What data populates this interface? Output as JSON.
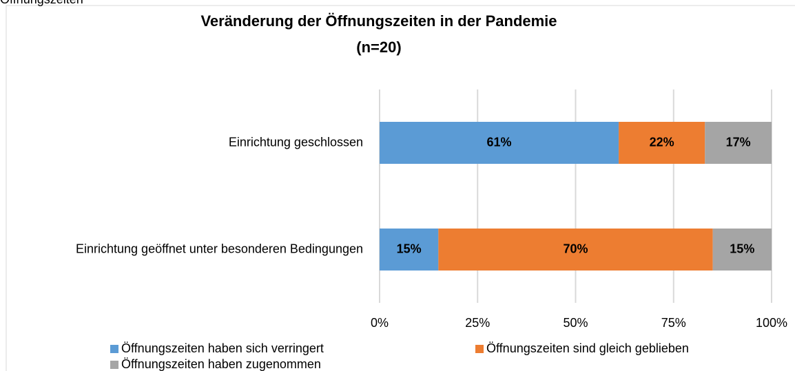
{
  "caption": "Öffnungszeiten",
  "chart_data": {
    "type": "stacked-bar-horizontal",
    "title": "Veränderung der Öffnungszeiten in der Pandemie",
    "subtitle": "(n=20)",
    "categories": [
      "Einrichtung geschlossen",
      "Einrichtung geöffnet unter besonderen Bedingungen"
    ],
    "series": [
      {
        "name": "Öffnungszeiten haben sich verringert",
        "color": "#5b9bd5",
        "values": [
          61,
          15
        ],
        "value_labels": [
          "61%",
          "15%"
        ]
      },
      {
        "name": "Öffnungszeiten sind gleich geblieben",
        "color": "#ed7d31",
        "values": [
          22,
          70
        ],
        "value_labels": [
          "22%",
          "70%"
        ]
      },
      {
        "name": "Öffnungszeiten haben zugenommen",
        "color": "#a5a5a5",
        "values": [
          17,
          15
        ],
        "value_labels": [
          "17%",
          "15%"
        ]
      }
    ],
    "xlim": [
      0,
      100
    ],
    "xticks": [
      {
        "value": 0,
        "label": "0%"
      },
      {
        "value": 25,
        "label": "25%"
      },
      {
        "value": 50,
        "label": "50%"
      },
      {
        "value": 75,
        "label": "75%"
      },
      {
        "value": 100,
        "label": "100%"
      }
    ],
    "grid": true,
    "legend": "bottom"
  }
}
